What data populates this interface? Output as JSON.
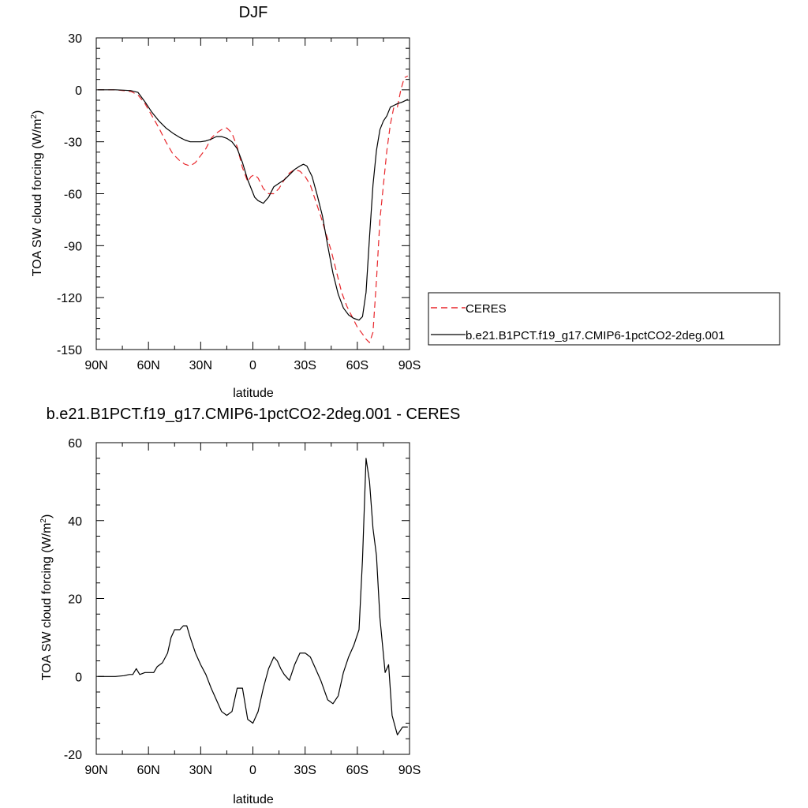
{
  "chart_data": [
    {
      "type": "line",
      "title": "DJF",
      "xlabel": "latitude",
      "ylabel": "TOA SW cloud forcing (W/m",
      "ylabel_sup": "2",
      "ylabel_close": ")",
      "xlim": [
        90,
        -90
      ],
      "ylim": [
        -150,
        30
      ],
      "x_ticks": [
        90,
        60,
        30,
        0,
        -30,
        -60,
        -90
      ],
      "x_tick_labels": [
        "90N",
        "60N",
        "30N",
        "0",
        "30S",
        "60S",
        "90S"
      ],
      "y_ticks": [
        30,
        0,
        -30,
        -60,
        -90,
        -120,
        -150
      ],
      "y_tick_labels": [
        "30",
        "0",
        "-30",
        "-60",
        "-90",
        "-120",
        "-150"
      ],
      "legend_position": "right",
      "series": [
        {
          "name": "CERES",
          "color": "#e8262b",
          "dash": "dashed",
          "x": [
            89,
            84,
            79,
            74,
            70,
            66,
            62,
            58,
            54,
            50,
            46,
            42,
            39,
            36,
            33,
            30,
            27,
            24,
            21,
            18,
            15,
            12,
            9,
            6,
            3,
            1,
            -1,
            -3,
            -6,
            -9,
            -12,
            -15,
            -18,
            -21,
            -24,
            -27,
            -30,
            -33,
            -36,
            -39,
            -42,
            -45,
            -48,
            -51,
            -54,
            -57,
            -60,
            -63,
            -65,
            -67,
            -69,
            -71,
            -73,
            -75,
            -77,
            -79,
            -81,
            -83,
            -85,
            -87,
            -89
          ],
          "values": [
            0,
            0,
            0,
            -0.5,
            -1,
            -3,
            -8,
            -15,
            -22,
            -30,
            -37,
            -41,
            -43,
            -44,
            -42,
            -38,
            -34,
            -28,
            -25,
            -23,
            -22,
            -25,
            -33,
            -45,
            -53,
            -50,
            -49,
            -51,
            -57,
            -60,
            -60,
            -57,
            -52,
            -48,
            -46,
            -47,
            -50,
            -55,
            -64,
            -73,
            -83,
            -93,
            -105,
            -117,
            -125,
            -131,
            -137,
            -141,
            -144,
            -146,
            -140,
            -110,
            -75,
            -55,
            -35,
            -20,
            -10,
            -10,
            0,
            7,
            8
          ]
        },
        {
          "name": "b.e21.B1PCT.f19_g17.CMIP6-1pctCO2-2deg.001",
          "color": "#000000",
          "dash": "solid",
          "x": [
            89,
            84,
            79,
            74,
            70,
            66,
            62,
            58,
            54,
            50,
            46,
            42,
            39,
            36,
            33,
            30,
            27,
            24,
            21,
            18,
            15,
            12,
            9,
            6,
            3,
            1,
            -1,
            -3,
            -6,
            -9,
            -12,
            -15,
            -18,
            -21,
            -24,
            -27,
            -29,
            -31,
            -34,
            -37,
            -40,
            -43,
            -46,
            -49,
            -52,
            -55,
            -58,
            -61,
            -63,
            -65,
            -67,
            -69,
            -71,
            -73,
            -75,
            -77,
            -79,
            -81,
            -83,
            -86,
            -89
          ],
          "values": [
            0,
            0,
            0,
            -0.2,
            -0.5,
            -1.5,
            -7,
            -13,
            -18,
            -22,
            -25,
            -27.5,
            -29,
            -30,
            -30,
            -30,
            -29.5,
            -28.5,
            -27,
            -27,
            -28,
            -30,
            -34,
            -42,
            -52,
            -57,
            -62,
            -64,
            -65.5,
            -62,
            -56,
            -54,
            -52,
            -49,
            -46,
            -44,
            -43,
            -44,
            -50,
            -61,
            -73,
            -90,
            -106,
            -118,
            -126,
            -130,
            -132,
            -133,
            -131,
            -117,
            -85,
            -55,
            -35,
            -23,
            -18,
            -15,
            -10,
            -9,
            -8,
            -7,
            -5.5
          ]
        }
      ]
    },
    {
      "type": "line",
      "title": "b.e21.B1PCT.f19_g17.CMIP6-1pctCO2-2deg.001 - CERES",
      "xlabel": "latitude",
      "ylabel": "TOA SW cloud forcing (W/m",
      "ylabel_sup": "2",
      "ylabel_close": ")",
      "xlim": [
        90,
        -90
      ],
      "ylim": [
        -20,
        60
      ],
      "x_ticks": [
        90,
        60,
        30,
        0,
        -30,
        -60,
        -90
      ],
      "x_tick_labels": [
        "90N",
        "60N",
        "30N",
        "0",
        "30S",
        "60S",
        "90S"
      ],
      "y_ticks": [
        60,
        40,
        20,
        0,
        -20
      ],
      "y_tick_labels": [
        "60",
        "40",
        "20",
        "0",
        "-20"
      ],
      "series": [
        {
          "name": "b.e21.B1PCT.f19_g17.CMIP6-1pctCO2-2deg.001 - CERES",
          "color": "#000000",
          "dash": "solid",
          "x": [
            89,
            84,
            79,
            74,
            71,
            69,
            67,
            65,
            62,
            60,
            57,
            55,
            52,
            49,
            47,
            45,
            42,
            40,
            38,
            36,
            33,
            30,
            27,
            24,
            21,
            18,
            15,
            12,
            9,
            6,
            3,
            0,
            -3,
            -6,
            -9,
            -12,
            -14,
            -16,
            -18,
            -21,
            -24,
            -27,
            -30,
            -33,
            -36,
            -39,
            -43,
            -46,
            -49,
            -52,
            -55,
            -58,
            -61,
            -63,
            -65,
            -67,
            -69,
            -71,
            -73,
            -76,
            -78,
            -80,
            -83,
            -86,
            -89
          ],
          "values": [
            0,
            0,
            0,
            0.2,
            0.5,
            0.5,
            2,
            0.5,
            1,
            1,
            1,
            2.5,
            3.5,
            6,
            10,
            12,
            12,
            13,
            13,
            10,
            6,
            3,
            0.5,
            -3,
            -6,
            -9,
            -10,
            -9,
            -3,
            -3,
            -11,
            -12,
            -9,
            -3,
            2,
            5,
            4,
            2,
            0.5,
            -1,
            3,
            6,
            6,
            5,
            2,
            -1,
            -6,
            -7,
            -5,
            1,
            5,
            8,
            12,
            30,
            56,
            50,
            38,
            31,
            15,
            1,
            3,
            -10,
            -15,
            -13,
            -13
          ]
        }
      ]
    }
  ]
}
